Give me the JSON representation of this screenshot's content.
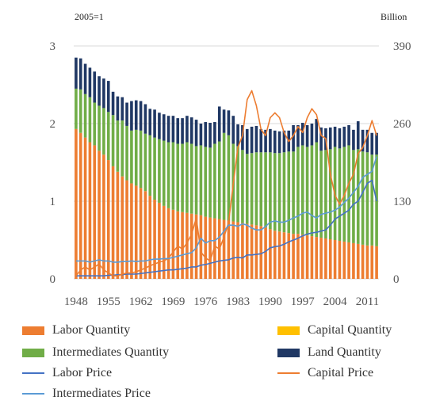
{
  "chart_data": {
    "type": "bar",
    "left_axis_unit": "2005=1",
    "right_axis_unit": "Billion",
    "ylim": [
      0,
      3
    ],
    "y2lim": [
      0,
      390
    ],
    "y_ticks": [
      0,
      1,
      2,
      3
    ],
    "y2_ticks": [
      0,
      130,
      260,
      390
    ],
    "x_tick_labels": [
      "1948",
      "1955",
      "1962",
      "1969",
      "1976",
      "1983",
      "1990",
      "1997",
      "2004",
      "2011"
    ],
    "years": [
      1948,
      1949,
      1950,
      1951,
      1952,
      1953,
      1954,
      1955,
      1956,
      1957,
      1958,
      1959,
      1960,
      1961,
      1962,
      1963,
      1964,
      1965,
      1966,
      1967,
      1968,
      1969,
      1970,
      1971,
      1972,
      1973,
      1974,
      1975,
      1976,
      1977,
      1978,
      1979,
      1980,
      1981,
      1982,
      1983,
      1984,
      1985,
      1986,
      1987,
      1988,
      1989,
      1990,
      1991,
      1992,
      1993,
      1994,
      1995,
      1996,
      1997,
      1998,
      1999,
      2000,
      2001,
      2002,
      2003,
      2004,
      2005,
      2006,
      2007,
      2008,
      2009,
      2010,
      2011,
      2012,
      2013
    ],
    "grid": true,
    "stacked": true,
    "legend_position": "bottom",
    "series": [
      {
        "name": "Labor Quantity",
        "kind": "bar",
        "axis": "left",
        "color": "#ED7D31",
        "values": [
          1.93,
          1.88,
          1.82,
          1.76,
          1.72,
          1.65,
          1.6,
          1.53,
          1.45,
          1.38,
          1.32,
          1.27,
          1.23,
          1.2,
          1.17,
          1.13,
          1.07,
          1.02,
          0.98,
          0.94,
          0.91,
          0.89,
          0.87,
          0.86,
          0.85,
          0.84,
          0.83,
          0.82,
          0.8,
          0.79,
          0.78,
          0.77,
          0.76,
          0.75,
          0.74,
          0.73,
          0.72,
          0.71,
          0.7,
          0.69,
          0.68,
          0.66,
          0.64,
          0.62,
          0.61,
          0.6,
          0.59,
          0.58,
          0.58,
          0.57,
          0.56,
          0.55,
          0.54,
          0.53,
          0.52,
          0.51,
          0.5,
          0.49,
          0.48,
          0.47,
          0.46,
          0.45,
          0.44,
          0.43,
          0.43,
          0.42
        ]
      },
      {
        "name": "Capital Quantity",
        "kind": "bar",
        "axis": "left",
        "color": "#FFC000",
        "values": [
          0,
          0,
          0,
          0,
          0,
          0,
          0,
          0,
          0,
          0,
          0,
          0,
          0,
          0,
          0,
          0,
          0,
          0,
          0,
          0,
          0,
          0,
          0,
          0,
          0,
          0,
          0,
          0,
          0,
          0,
          0,
          0,
          0,
          0,
          0,
          0,
          0,
          0,
          0,
          0,
          0,
          0,
          0,
          0,
          0,
          0,
          0,
          0,
          0,
          0,
          0,
          0,
          0,
          0,
          0,
          0,
          0,
          0,
          0,
          0,
          0,
          0,
          0,
          0,
          0,
          0
        ]
      },
      {
        "name": "Intermediates Quantity",
        "kind": "bar",
        "axis": "left",
        "color": "#70AD47",
        "values": [
          0.52,
          0.56,
          0.56,
          0.58,
          0.55,
          0.58,
          0.6,
          0.62,
          0.66,
          0.66,
          0.72,
          0.7,
          0.68,
          0.72,
          0.74,
          0.74,
          0.78,
          0.8,
          0.82,
          0.84,
          0.85,
          0.87,
          0.87,
          0.88,
          0.91,
          0.9,
          0.88,
          0.9,
          0.9,
          0.9,
          0.96,
          1.0,
          1.12,
          1.1,
          1.0,
          0.98,
          0.94,
          0.9,
          0.92,
          0.94,
          0.95,
          0.97,
          0.99,
          1.0,
          1.01,
          1.03,
          1.05,
          1.06,
          1.12,
          1.15,
          1.14,
          1.17,
          1.22,
          1.12,
          1.14,
          1.16,
          1.2,
          1.19,
          1.22,
          1.25,
          1.2,
          1.22,
          1.2,
          1.2,
          1.17,
          1.18
        ]
      },
      {
        "name": "Land Quantity",
        "kind": "bar",
        "axis": "left",
        "color": "#203864",
        "values": [
          0.4,
          0.4,
          0.39,
          0.38,
          0.4,
          0.38,
          0.38,
          0.4,
          0.3,
          0.31,
          0.3,
          0.3,
          0.38,
          0.38,
          0.38,
          0.38,
          0.34,
          0.36,
          0.34,
          0.34,
          0.34,
          0.34,
          0.33,
          0.33,
          0.34,
          0.34,
          0.34,
          0.28,
          0.32,
          0.32,
          0.28,
          0.45,
          0.3,
          0.32,
          0.36,
          0.28,
          0.32,
          0.32,
          0.34,
          0.34,
          0.3,
          0.29,
          0.3,
          0.29,
          0.28,
          0.28,
          0.27,
          0.34,
          0.28,
          0.29,
          0.28,
          0.28,
          0.3,
          0.3,
          0.28,
          0.28,
          0.26,
          0.26,
          0.26,
          0.26,
          0.26,
          0.36,
          0.28,
          0.29,
          0.28,
          0.28
        ]
      },
      {
        "name": "Labor Price",
        "kind": "line",
        "axis": "right",
        "color": "#4472C4",
        "values": [
          5,
          5,
          5,
          5,
          5,
          5,
          5,
          6,
          6,
          7,
          7,
          8,
          8,
          8,
          9,
          10,
          11,
          12,
          13,
          14,
          15,
          15,
          16,
          17,
          18,
          20,
          20,
          23,
          24,
          26,
          28,
          30,
          31,
          32,
          35,
          36,
          35,
          40,
          40,
          41,
          42,
          46,
          52,
          54,
          55,
          58,
          62,
          65,
          68,
          72,
          75,
          77,
          78,
          80,
          82,
          90,
          100,
          105,
          110,
          115,
          125,
          130,
          145,
          160,
          165,
          130
        ]
      },
      {
        "name": "Capital Price",
        "kind": "line",
        "axis": "right",
        "color": "#ED7D31",
        "values": [
          5,
          15,
          20,
          15,
          20,
          25,
          15,
          10,
          5,
          5,
          8,
          10,
          10,
          12,
          15,
          18,
          22,
          25,
          28,
          30,
          35,
          45,
          55,
          50,
          60,
          75,
          102,
          45,
          35,
          30,
          55,
          50,
          70,
          95,
          160,
          220,
          240,
          300,
          315,
          290,
          250,
          240,
          270,
          278,
          270,
          245,
          230,
          240,
          255,
          245,
          270,
          285,
          275,
          240,
          235,
          175,
          140,
          125,
          140,
          160,
          175,
          210,
          220,
          240,
          265,
          240
        ]
      },
      {
        "name": "Intermediates Price",
        "kind": "line",
        "axis": "right",
        "color": "#5B9BD5",
        "values": [
          30,
          30,
          30,
          28,
          30,
          32,
          30,
          30,
          28,
          28,
          29,
          29,
          30,
          29,
          30,
          30,
          32,
          33,
          33,
          34,
          34,
          36,
          38,
          40,
          42,
          44,
          52,
          68,
          60,
          64,
          64,
          70,
          80,
          90,
          90,
          88,
          92,
          90,
          85,
          82,
          82,
          88,
          95,
          97,
          95,
          95,
          98,
          102,
          105,
          110,
          112,
          106,
          102,
          108,
          110,
          112,
          115,
          120,
          128,
          135,
          145,
          155,
          170,
          175,
          180,
          205
        ]
      }
    ]
  }
}
